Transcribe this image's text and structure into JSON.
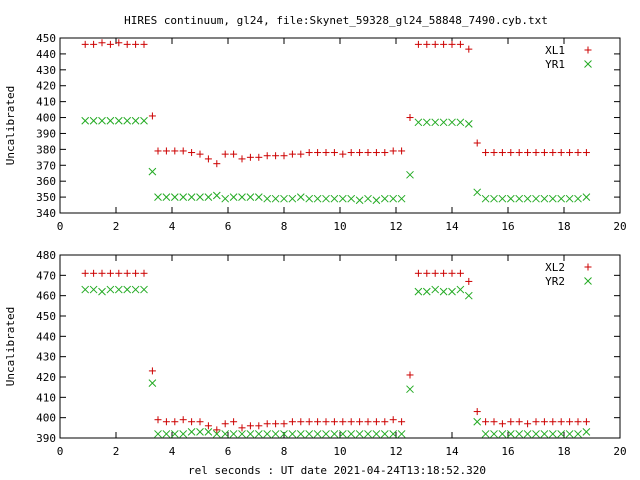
{
  "title": "HIRES continuum, gl24, file:Skynet_59328_gl24_58848_7490.cyb.txt",
  "xlabel": "rel seconds : UT date 2021-04-24T13:18:52.320",
  "colors": {
    "plus": "#cc0000",
    "cross": "#22aa22"
  },
  "chart_data": [
    {
      "type": "scatter",
      "ylabel": "Uncalibrated",
      "xlim": [
        0,
        20
      ],
      "ylim": [
        340,
        450
      ],
      "x_ticks": [
        0,
        2,
        4,
        6,
        8,
        10,
        12,
        14,
        16,
        18,
        20
      ],
      "y_ticks": [
        340,
        350,
        360,
        370,
        380,
        390,
        400,
        410,
        420,
        430,
        440,
        450
      ],
      "legend_position": "top-right",
      "series": [
        {
          "name": "XL1",
          "marker": "plus",
          "x": [
            0.9,
            1.2,
            1.5,
            1.8,
            2.1,
            2.4,
            2.7,
            3.0,
            3.3,
            3.5,
            3.8,
            4.1,
            4.4,
            4.7,
            5.0,
            5.3,
            5.6,
            5.9,
            6.2,
            6.5,
            6.8,
            7.1,
            7.4,
            7.7,
            8.0,
            8.3,
            8.6,
            8.9,
            9.2,
            9.5,
            9.8,
            10.1,
            10.4,
            10.7,
            11.0,
            11.3,
            11.6,
            11.9,
            12.2,
            12.5,
            12.8,
            13.1,
            13.4,
            13.7,
            14.0,
            14.3,
            14.6,
            14.9,
            15.2,
            15.5,
            15.8,
            16.1,
            16.4,
            16.7,
            17.0,
            17.3,
            17.6,
            17.9,
            18.2,
            18.5,
            18.8
          ],
          "y": [
            446,
            446,
            447,
            446,
            447,
            446,
            446,
            446,
            401,
            379,
            379,
            379,
            379,
            378,
            377,
            374,
            371,
            377,
            377,
            374,
            375,
            375,
            376,
            376,
            376,
            377,
            377,
            378,
            378,
            378,
            378,
            377,
            378,
            378,
            378,
            378,
            378,
            379,
            379,
            400,
            446,
            446,
            446,
            446,
            446,
            446,
            443,
            384,
            378,
            378,
            378,
            378,
            378,
            378,
            378,
            378,
            378,
            378,
            378,
            378,
            378
          ]
        },
        {
          "name": "YR1",
          "marker": "cross",
          "x": [
            0.9,
            1.2,
            1.5,
            1.8,
            2.1,
            2.4,
            2.7,
            3.0,
            3.3,
            3.5,
            3.8,
            4.1,
            4.4,
            4.7,
            5.0,
            5.3,
            5.6,
            5.9,
            6.2,
            6.5,
            6.8,
            7.1,
            7.4,
            7.7,
            8.0,
            8.3,
            8.6,
            8.9,
            9.2,
            9.5,
            9.8,
            10.1,
            10.4,
            10.7,
            11.0,
            11.3,
            11.6,
            11.9,
            12.2,
            12.5,
            12.8,
            13.1,
            13.4,
            13.7,
            14.0,
            14.3,
            14.6,
            14.9,
            15.2,
            15.5,
            15.8,
            16.1,
            16.4,
            16.7,
            17.0,
            17.3,
            17.6,
            17.9,
            18.2,
            18.5,
            18.8
          ],
          "y": [
            398,
            398,
            398,
            398,
            398,
            398,
            398,
            398,
            366,
            350,
            350,
            350,
            350,
            350,
            350,
            350,
            351,
            349,
            350,
            350,
            350,
            350,
            349,
            349,
            349,
            349,
            350,
            349,
            349,
            349,
            349,
            349,
            349,
            348,
            349,
            348,
            349,
            349,
            349,
            364,
            397,
            397,
            397,
            397,
            397,
            397,
            396,
            353,
            349,
            349,
            349,
            349,
            349,
            349,
            349,
            349,
            349,
            349,
            349,
            349,
            350
          ]
        }
      ]
    },
    {
      "type": "scatter",
      "ylabel": "Uncalibrated",
      "xlim": [
        0,
        20
      ],
      "ylim": [
        390,
        480
      ],
      "x_ticks": [
        0,
        2,
        4,
        6,
        8,
        10,
        12,
        14,
        16,
        18,
        20
      ],
      "y_ticks": [
        390,
        400,
        410,
        420,
        430,
        440,
        450,
        460,
        470,
        480
      ],
      "legend_position": "top-right",
      "series": [
        {
          "name": "XL2",
          "marker": "plus",
          "x": [
            0.9,
            1.2,
            1.5,
            1.8,
            2.1,
            2.4,
            2.7,
            3.0,
            3.3,
            3.5,
            3.8,
            4.1,
            4.4,
            4.7,
            5.0,
            5.3,
            5.6,
            5.9,
            6.2,
            6.5,
            6.8,
            7.1,
            7.4,
            7.7,
            8.0,
            8.3,
            8.6,
            8.9,
            9.2,
            9.5,
            9.8,
            10.1,
            10.4,
            10.7,
            11.0,
            11.3,
            11.6,
            11.9,
            12.2,
            12.5,
            12.8,
            13.1,
            13.4,
            13.7,
            14.0,
            14.3,
            14.6,
            14.9,
            15.2,
            15.5,
            15.8,
            16.1,
            16.4,
            16.7,
            17.0,
            17.3,
            17.6,
            17.9,
            18.2,
            18.5,
            18.8
          ],
          "y": [
            471,
            471,
            471,
            471,
            471,
            471,
            471,
            471,
            423,
            399,
            398,
            398,
            399,
            398,
            398,
            396,
            394,
            397,
            398,
            395,
            396,
            396,
            397,
            397,
            397,
            398,
            398,
            398,
            398,
            398,
            398,
            398,
            398,
            398,
            398,
            398,
            398,
            399,
            398,
            421,
            471,
            471,
            471,
            471,
            471,
            471,
            467,
            403,
            398,
            398,
            397,
            398,
            398,
            397,
            398,
            398,
            398,
            398,
            398,
            398,
            398
          ]
        },
        {
          "name": "YR2",
          "marker": "cross",
          "x": [
            0.9,
            1.2,
            1.5,
            1.8,
            2.1,
            2.4,
            2.7,
            3.0,
            3.3,
            3.5,
            3.8,
            4.1,
            4.4,
            4.7,
            5.0,
            5.3,
            5.6,
            5.9,
            6.2,
            6.5,
            6.8,
            7.1,
            7.4,
            7.7,
            8.0,
            8.3,
            8.6,
            8.9,
            9.2,
            9.5,
            9.8,
            10.1,
            10.4,
            10.7,
            11.0,
            11.3,
            11.6,
            11.9,
            12.2,
            12.5,
            12.8,
            13.1,
            13.4,
            13.7,
            14.0,
            14.3,
            14.6,
            14.9,
            15.2,
            15.5,
            15.8,
            16.1,
            16.4,
            16.7,
            17.0,
            17.3,
            17.6,
            17.9,
            18.2,
            18.5,
            18.8
          ],
          "y": [
            463,
            463,
            462,
            463,
            463,
            463,
            463,
            463,
            417,
            392,
            392,
            392,
            392,
            393,
            393,
            393,
            392,
            392,
            392,
            392,
            392,
            392,
            392,
            392,
            392,
            392,
            392,
            392,
            392,
            392,
            392,
            392,
            392,
            392,
            392,
            392,
            392,
            392,
            392,
            414,
            462,
            462,
            463,
            462,
            462,
            463,
            460,
            398,
            392,
            392,
            392,
            392,
            392,
            392,
            392,
            392,
            392,
            392,
            392,
            392,
            393
          ]
        }
      ]
    }
  ]
}
